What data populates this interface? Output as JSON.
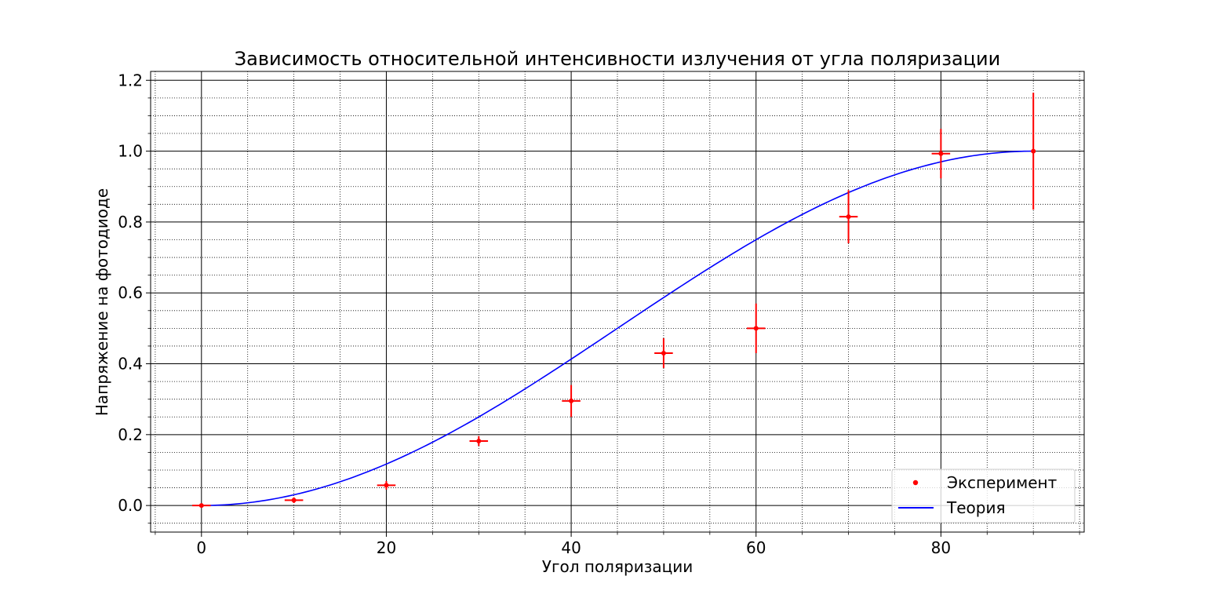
{
  "chart_data": {
    "type": "scatter",
    "title": "Зависимость относительной интенсивности излучения от угла поляризации",
    "xlabel": "Угол поляризации",
    "ylabel": "Напряжение на фотодиоде",
    "xlim": [
      -5.5,
      95.5
    ],
    "ylim": [
      -0.075,
      1.225
    ],
    "xticks": [
      0,
      20,
      40,
      60,
      80
    ],
    "xtick_labels": [
      "0",
      "20",
      "40",
      "60",
      "80"
    ],
    "yticks": [
      0.0,
      0.2,
      0.4,
      0.6,
      0.8,
      1.0,
      1.2
    ],
    "ytick_labels": [
      "0.0",
      "0.2",
      "0.4",
      "0.6",
      "0.8",
      "1.0",
      "1.2"
    ],
    "grid": {
      "major": true,
      "minor": true
    },
    "legend_position": "lower right",
    "series": [
      {
        "name": "Эксперимент",
        "kind": "errorbar-points",
        "color": "#ff0000",
        "x": [
          0,
          10,
          20,
          30,
          40,
          50,
          60,
          70,
          80,
          90
        ],
        "y": [
          0.0,
          0.015,
          0.057,
          0.182,
          0.295,
          0.43,
          0.5,
          0.815,
          0.993,
          1.0
        ],
        "xerr": [
          1,
          1,
          1,
          1,
          1,
          1,
          1,
          1,
          1,
          0
        ],
        "yerr": [
          0.0,
          0.008,
          0.012,
          0.014,
          0.045,
          0.042,
          0.07,
          0.075,
          0.07,
          0.165
        ]
      },
      {
        "name": "Теория",
        "kind": "line",
        "color": "#0000ff",
        "function": "sin^2(x)",
        "x_range": [
          0,
          90
        ]
      }
    ]
  }
}
